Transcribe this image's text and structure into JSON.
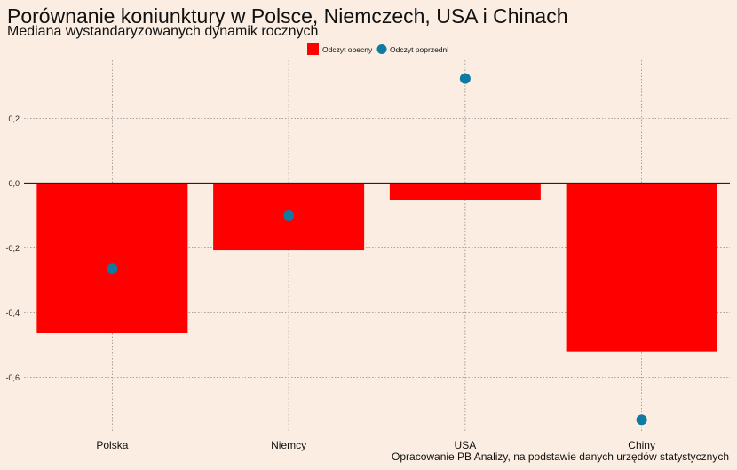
{
  "chart_data": {
    "type": "bar",
    "title": "Porównanie koniunktury w Polsce, Niemczech, USA i Chinach",
    "subtitle": "Mediana wystandaryzowanych dynamik rocznych",
    "caption": "Opracowanie PB Analizy, na podstawie danych urzędów statystycznych",
    "categories": [
      "Polska",
      "Niemcy",
      "USA",
      "Chiny"
    ],
    "series": [
      {
        "name": "Odczyt obecny",
        "kind": "bar",
        "color": "#ff0000",
        "values": [
          -0.462,
          -0.207,
          -0.052,
          -0.521
        ]
      },
      {
        "name": "Odczyt poprzedni",
        "kind": "point",
        "color": "#0f7aa2",
        "values": [
          -0.265,
          -0.1,
          0.323,
          -0.731
        ]
      }
    ],
    "ylim": [
      -0.8,
      0.38
    ],
    "yticks": [
      0.2,
      0.0,
      -0.2,
      -0.4,
      -0.6
    ],
    "ytick_labels": [
      "0,2",
      "0,0",
      "-0,2",
      "-0,4",
      "-0,6"
    ],
    "grid": true,
    "legend_position": "top-center"
  }
}
